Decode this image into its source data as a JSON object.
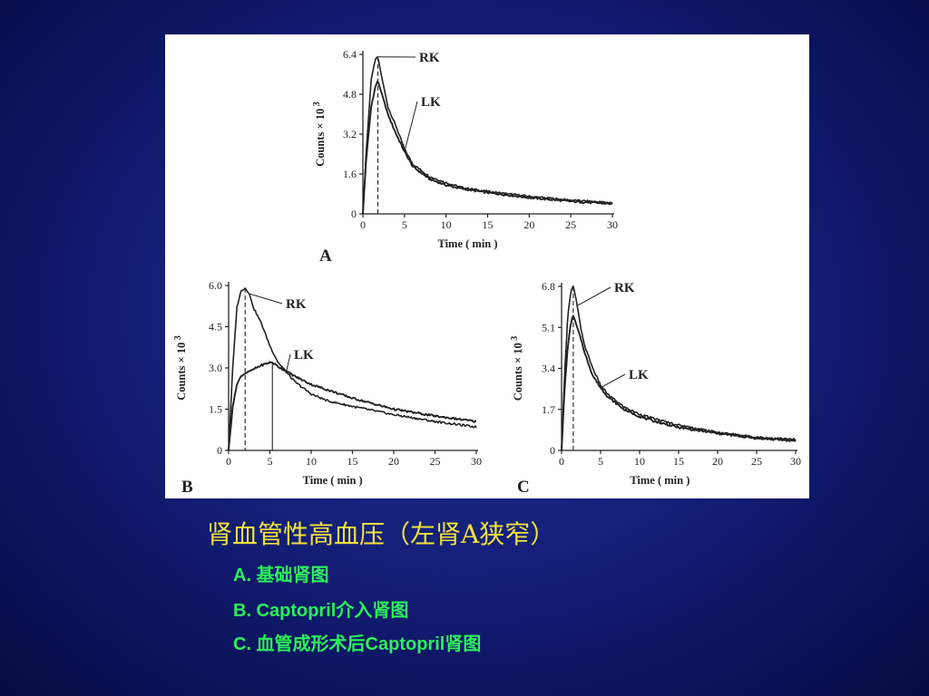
{
  "slide": {
    "title": "肾血管性高血压（左肾A狭窄）",
    "legend": [
      "A. 基础肾图",
      "B. Captopril介入肾图",
      "C. 血管成形术后Captopril肾图"
    ]
  },
  "colors": {
    "background": "#14207a",
    "title": "#f2e23a",
    "legend": "#2bf05a",
    "panel": "#ffffff",
    "ink": "#222222"
  },
  "chart_data": [
    {
      "type": "line",
      "panel_label": "A",
      "xlabel": "Time ( min )",
      "ylabel": "Counts × 10",
      "ylabel_sup": "3",
      "xlim": [
        0,
        30
      ],
      "ylim": [
        0,
        6.4
      ],
      "xticks": [
        0,
        5,
        10,
        15,
        20,
        25,
        30
      ],
      "yticks": [
        "0",
        "1.6",
        "3.2",
        "4.8",
        "6.4"
      ],
      "peak_marker_x": 1.8,
      "series": [
        {
          "name": "RK",
          "x": [
            0,
            0.4,
            1,
            1.5,
            1.8,
            2.2,
            3,
            4,
            5,
            6,
            8,
            10,
            12,
            15,
            20,
            25,
            30
          ],
          "y": [
            0,
            2.5,
            5.4,
            6.2,
            6.3,
            5.6,
            4.3,
            3.5,
            2.6,
            2.0,
            1.5,
            1.25,
            1.05,
            0.9,
            0.7,
            0.55,
            0.45
          ]
        },
        {
          "name": "LK",
          "x": [
            0,
            0.4,
            1,
            1.5,
            1.8,
            2.2,
            3,
            4,
            5,
            6,
            8,
            10,
            12,
            15,
            20,
            25,
            30
          ],
          "y": [
            0,
            2.2,
            4.3,
            5.1,
            5.35,
            4.9,
            4.0,
            3.2,
            2.5,
            1.9,
            1.4,
            1.15,
            1.0,
            0.85,
            0.65,
            0.5,
            0.4
          ]
        }
      ]
    },
    {
      "type": "line",
      "panel_label": "B",
      "xlabel": "Time ( min )",
      "ylabel": "Counts × 10",
      "ylabel_sup": "3",
      "xlim": [
        0,
        30
      ],
      "ylim": [
        0,
        6.0
      ],
      "xticks": [
        0,
        5,
        10,
        15,
        20,
        25,
        30
      ],
      "yticks": [
        "0",
        "1.5",
        "3.0",
        "4.5",
        "6.0"
      ],
      "peak_marker_x": 2,
      "peak_marker_x2": 5.3,
      "series": [
        {
          "name": "RK",
          "x": [
            0,
            0.5,
            1,
            1.5,
            2,
            2.5,
            3,
            4,
            5,
            6,
            8,
            10,
            12,
            15,
            20,
            25,
            30
          ],
          "y": [
            0,
            3.0,
            5.2,
            5.8,
            5.9,
            5.7,
            5.2,
            4.6,
            3.8,
            3.2,
            2.5,
            2.05,
            1.8,
            1.6,
            1.3,
            1.05,
            0.85
          ]
        },
        {
          "name": "LK",
          "x": [
            0,
            0.5,
            1,
            1.5,
            2,
            3,
            4,
            5,
            5.3,
            6,
            8,
            10,
            12,
            15,
            20,
            25,
            30
          ],
          "y": [
            0,
            1.6,
            2.4,
            2.7,
            2.8,
            2.95,
            3.1,
            3.2,
            3.2,
            3.05,
            2.7,
            2.4,
            2.2,
            1.9,
            1.5,
            1.25,
            1.05
          ]
        }
      ]
    },
    {
      "type": "line",
      "panel_label": "C",
      "xlabel": "Time ( min )",
      "ylabel": "Counts × 10",
      "ylabel_sup": "3",
      "xlim": [
        0,
        30
      ],
      "ylim": [
        0,
        6.8
      ],
      "xticks": [
        0,
        5,
        10,
        15,
        20,
        25,
        30
      ],
      "yticks": [
        "0",
        "1.7",
        "3.4",
        "5.1",
        "6.8"
      ],
      "peak_marker_x": 1.5,
      "series": [
        {
          "name": "RK",
          "x": [
            0,
            0.4,
            0.8,
            1.2,
            1.5,
            1.9,
            2.5,
            3,
            4,
            5,
            6,
            8,
            10,
            12,
            15,
            20,
            25,
            30
          ],
          "y": [
            0,
            3.2,
            5.6,
            6.6,
            6.8,
            6.2,
            5.0,
            4.3,
            3.4,
            2.7,
            2.3,
            1.8,
            1.5,
            1.3,
            1.05,
            0.75,
            0.55,
            0.45
          ]
        },
        {
          "name": "LK",
          "x": [
            0,
            0.4,
            0.8,
            1.2,
            1.5,
            1.9,
            2.5,
            3,
            4,
            5,
            6,
            8,
            10,
            12,
            15,
            20,
            25,
            30
          ],
          "y": [
            0,
            2.6,
            4.3,
            5.3,
            5.6,
            5.2,
            4.6,
            4.0,
            3.1,
            2.6,
            2.2,
            1.7,
            1.4,
            1.2,
            0.95,
            0.7,
            0.5,
            0.4
          ]
        }
      ]
    }
  ]
}
